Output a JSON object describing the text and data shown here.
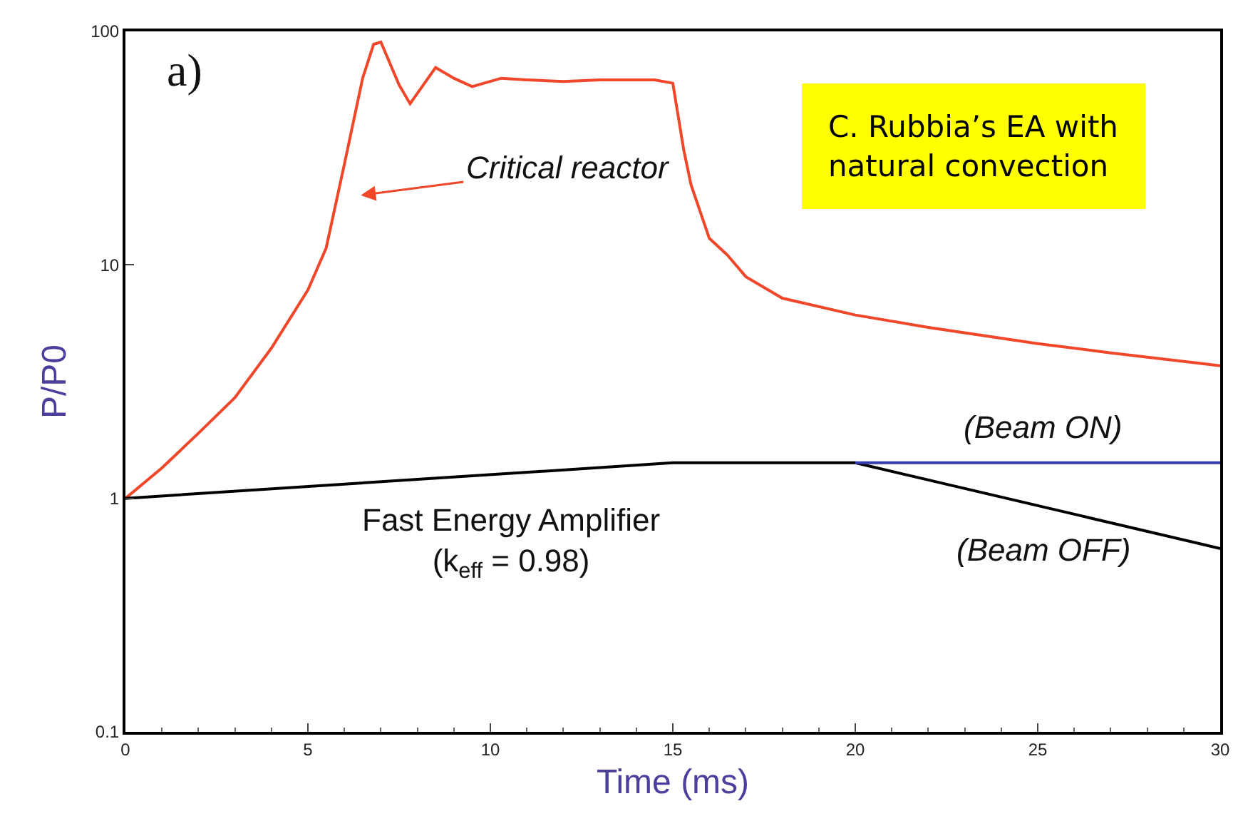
{
  "chart_data": {
    "type": "line",
    "xlabel": "Time (ms)",
    "ylabel": "P/P0",
    "log": "y",
    "grid": false,
    "xlim": [
      0,
      30
    ],
    "xticks": [
      0,
      5,
      10,
      15,
      20,
      25,
      30
    ],
    "ylim": [
      0.1,
      100
    ],
    "yticks": [
      0.1,
      1,
      10,
      100
    ],
    "series": [
      {
        "color": "#f0462a",
        "x": [
          0,
          1,
          2,
          3,
          4,
          5,
          5.5,
          6,
          6.5,
          6.8,
          7,
          7.5,
          7.8,
          8.5,
          9,
          9.5,
          10.3,
          11,
          12,
          13,
          14.5,
          15,
          15.3,
          15.5,
          16,
          16.5,
          17,
          18,
          20,
          22,
          25,
          27,
          30
        ],
        "values": [
          1,
          1.35,
          1.9,
          2.7,
          4.4,
          7.8,
          11.8,
          27,
          63,
          88,
          90,
          59,
          49,
          70,
          63,
          58,
          63,
          62,
          61,
          62,
          62,
          60,
          31,
          22,
          13,
          11,
          8.9,
          7.2,
          6.1,
          5.4,
          4.6,
          4.2,
          3.7
        ]
      },
      {
        "color": "#000000",
        "x": [
          0,
          15,
          20,
          30
        ],
        "values": [
          1,
          1.42,
          1.42,
          0.61
        ]
      },
      {
        "color": "#3b3bb0",
        "x": [
          20,
          30
        ],
        "values": [
          1.42,
          1.42
        ]
      }
    ],
    "annotations": [
      "a)",
      "C. Rubbia’s EA with\nnatural convection",
      "Critical reactor",
      "Fast Energy Amplifier\n(k$_{eff}$ = 0.98)",
      "(Beam ON)",
      "(Beam OFF)"
    ]
  }
}
